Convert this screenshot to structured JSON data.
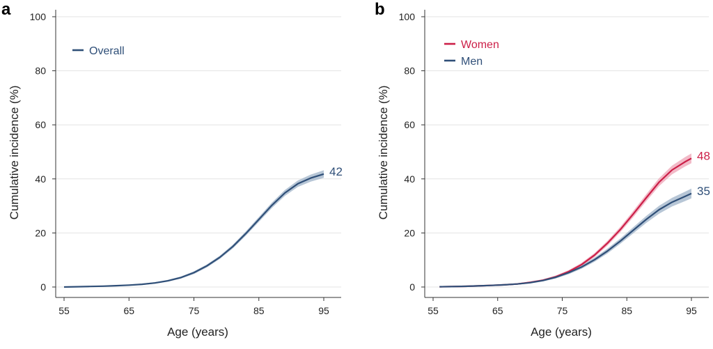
{
  "chart_data": [
    {
      "panel": "a",
      "type": "line",
      "xlabel": "Age (years)",
      "ylabel": "Cumulative incidence (%)",
      "xlim": [
        55,
        95
      ],
      "ylim": [
        0,
        100
      ],
      "xticks": [
        55,
        65,
        75,
        85,
        95
      ],
      "yticks": [
        0,
        20,
        40,
        60,
        80,
        100
      ],
      "grid": "horizontal",
      "legend_position": "top-left",
      "series": [
        {
          "name": "Overall",
          "color": "#2f4f78",
          "band_color": "#9fb3c8",
          "end_label": "42",
          "x": [
            55,
            57,
            59,
            61,
            63,
            65,
            67,
            69,
            71,
            73,
            75,
            77,
            79,
            81,
            83,
            85,
            87,
            89,
            91,
            93,
            95
          ],
          "y": [
            0,
            0.1,
            0.2,
            0.3,
            0.5,
            0.7,
            1.0,
            1.5,
            2.3,
            3.5,
            5.3,
            7.8,
            11.0,
            15.0,
            19.8,
            25.0,
            30.2,
            34.8,
            38.2,
            40.3,
            41.8
          ],
          "ci_width": [
            0,
            0.05,
            0.1,
            0.1,
            0.15,
            0.2,
            0.25,
            0.3,
            0.35,
            0.4,
            0.5,
            0.55,
            0.6,
            0.7,
            0.8,
            0.9,
            1.0,
            1.1,
            1.2,
            1.3,
            1.4
          ]
        }
      ]
    },
    {
      "panel": "b",
      "type": "line",
      "xlabel": "Age (years)",
      "ylabel": "Cumulative incidence (%)",
      "xlim": [
        55,
        95
      ],
      "ylim": [
        0,
        100
      ],
      "xticks": [
        55,
        65,
        75,
        85,
        95
      ],
      "yticks": [
        0,
        20,
        40,
        60,
        80,
        100
      ],
      "grid": "horizontal",
      "legend_position": "top-left",
      "series": [
        {
          "name": "Women",
          "color": "#cc1f48",
          "band_color": "#eea3b5",
          "end_label": "48",
          "x": [
            56,
            58,
            60,
            62,
            64,
            66,
            68,
            70,
            72,
            74,
            76,
            78,
            80,
            82,
            84,
            86,
            88,
            90,
            92,
            94,
            95
          ],
          "y": [
            0.1,
            0.15,
            0.25,
            0.4,
            0.6,
            0.8,
            1.1,
            1.7,
            2.5,
            3.8,
            5.7,
            8.3,
            11.8,
            16.2,
            21.3,
            27.0,
            33.0,
            38.8,
            43.3,
            46.3,
            47.6
          ],
          "ci_width": [
            0,
            0.05,
            0.1,
            0.1,
            0.15,
            0.2,
            0.25,
            0.3,
            0.35,
            0.45,
            0.55,
            0.65,
            0.75,
            0.9,
            1.0,
            1.15,
            1.3,
            1.45,
            1.6,
            1.75,
            1.8
          ]
        },
        {
          "name": "Men",
          "color": "#2f4f78",
          "band_color": "#9fb3c8",
          "end_label": "35",
          "x": [
            56,
            58,
            60,
            62,
            64,
            66,
            68,
            70,
            72,
            74,
            76,
            78,
            80,
            82,
            84,
            86,
            88,
            90,
            92,
            94,
            95
          ],
          "y": [
            0.1,
            0.15,
            0.25,
            0.4,
            0.6,
            0.8,
            1.1,
            1.6,
            2.4,
            3.6,
            5.3,
            7.4,
            10.1,
            13.3,
            17.0,
            21.0,
            25.0,
            28.6,
            31.4,
            33.5,
            34.6
          ],
          "ci_width": [
            0,
            0.05,
            0.1,
            0.1,
            0.15,
            0.2,
            0.25,
            0.3,
            0.35,
            0.45,
            0.55,
            0.65,
            0.75,
            0.9,
            1.0,
            1.15,
            1.3,
            1.45,
            1.6,
            1.75,
            1.8
          ]
        }
      ]
    }
  ]
}
